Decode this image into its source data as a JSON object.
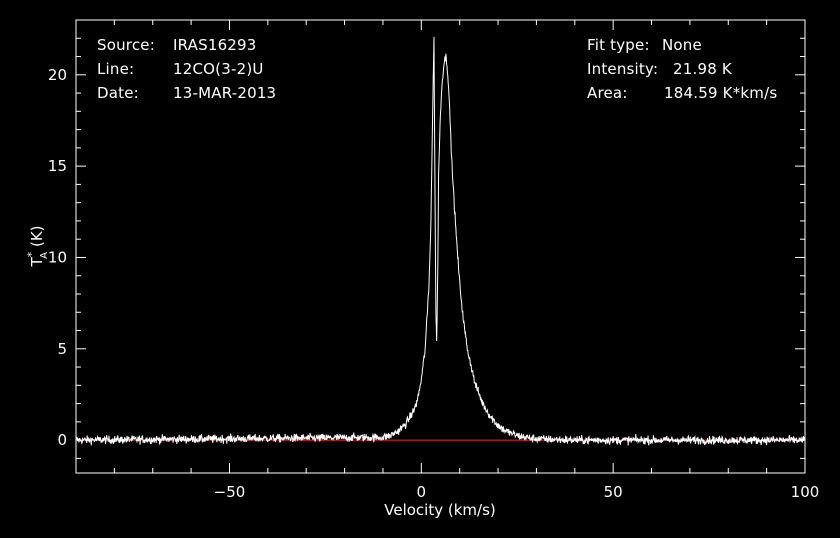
{
  "chart_data": {
    "type": "line",
    "xlabel": "Velocity (km/s)",
    "ylabel_main": "T",
    "ylabel_sup": "*",
    "ylabel_sub": "A",
    "ylabel_unit": "(K)",
    "xlim": [
      -90,
      100
    ],
    "ylim": [
      -1.8,
      23.0
    ],
    "xticks": [
      -50,
      0,
      50,
      100
    ],
    "yticks": [
      0,
      5,
      10,
      15,
      20
    ],
    "baseline": 0,
    "colors": {
      "spectrum": "#ffffff",
      "baseline": "#ff2020",
      "axes": "#ffffff",
      "background": "#000000"
    },
    "series": [
      {
        "x": [
          -90,
          -10,
          -8,
          -6,
          -4,
          -2,
          -1,
          0,
          1,
          2,
          2.5,
          3,
          3.3,
          3.5,
          3.8,
          4,
          4.3,
          4.5,
          5,
          5.5,
          6,
          6.5,
          7,
          7.5,
          8,
          9,
          10,
          11,
          12,
          14,
          16,
          18,
          20,
          22,
          25,
          28,
          32,
          40,
          100
        ],
        "y": [
          0,
          0.15,
          0.25,
          0.5,
          0.9,
          1.6,
          2.2,
          3.3,
          5.0,
          8.5,
          12.0,
          18.5,
          22.0,
          15.5,
          7.0,
          5.3,
          9.5,
          14.5,
          18.0,
          19.8,
          20.8,
          21.0,
          19.8,
          17.5,
          15.0,
          11.5,
          8.6,
          6.5,
          5.0,
          3.1,
          2.0,
          1.3,
          0.8,
          0.5,
          0.25,
          0.12,
          0.05,
          0,
          0
        ],
        "noise_rms": 0.22
      }
    ]
  },
  "info": {
    "source_label": "Source:",
    "source_value": "IRAS16293",
    "line_label": "Line:",
    "line_value": "12CO(3-2)U",
    "date_label": "Date:",
    "date_value": "13-MAR-2013",
    "fit_label": "Fit type:",
    "fit_value": "None",
    "intensity_label": "Intensity:",
    "intensity_value": "21.98 K",
    "area_label": "Area:",
    "area_value": "184.59 K*km/s"
  }
}
